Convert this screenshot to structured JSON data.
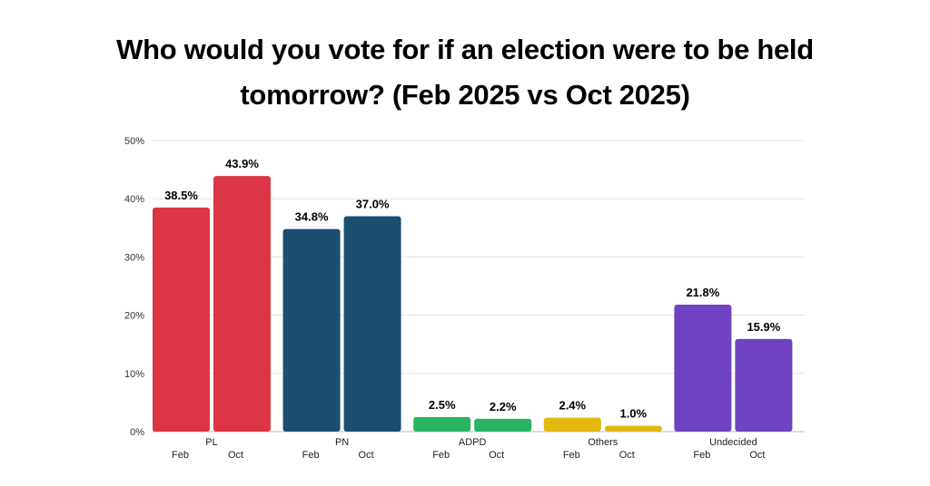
{
  "title": {
    "line1": "Who would you vote for if an election were to be held",
    "line2": "tomorrow? (Feb 2025 vs Oct 2025)"
  },
  "chart_data": {
    "type": "bar",
    "title": "Who would you vote for if an election were to be held tomorrow? (Feb 2025 vs Oct 2025)",
    "categories": [
      "PL",
      "PN",
      "ADPD",
      "Others",
      "Undecided"
    ],
    "series": [
      {
        "name": "Feb",
        "values": [
          38.5,
          34.8,
          2.5,
          2.4,
          21.8
        ]
      },
      {
        "name": "Oct",
        "values": [
          43.9,
          37.0,
          2.2,
          1.0,
          15.9
        ]
      }
    ],
    "value_labels": [
      [
        "38.5%",
        "43.9%"
      ],
      [
        "34.8%",
        "37.0%"
      ],
      [
        "2.5%",
        "2.2%"
      ],
      [
        "2.4%",
        "1.0%"
      ],
      [
        "21.8%",
        "15.9%"
      ]
    ],
    "colors": [
      "#dc3545",
      "#1b4f72",
      "#28b463",
      "#e3b80f",
      "#6f42c1"
    ],
    "yticks": [
      0,
      10,
      20,
      30,
      40,
      50
    ],
    "ytick_labels": [
      "0%",
      "10%",
      "20%",
      "30%",
      "40%",
      "50%"
    ],
    "ylim": [
      0,
      50
    ],
    "xlabel": "",
    "ylabel": "",
    "grid": true,
    "legend": "none"
  }
}
